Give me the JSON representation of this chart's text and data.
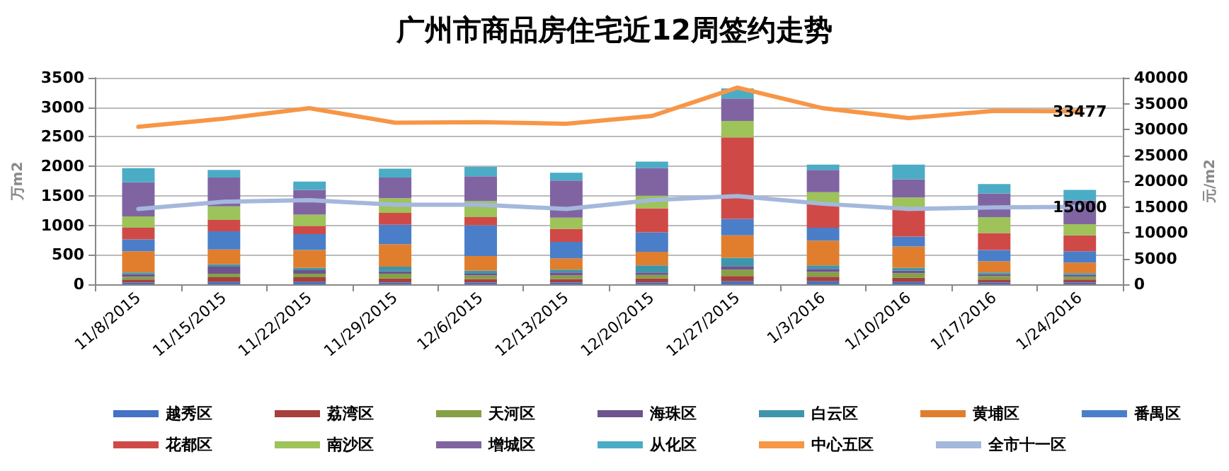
{
  "chart_data": {
    "type": "bar",
    "stacked": true,
    "title": "广州市商品房住宅近12周签约走势",
    "ylabel": "万m2",
    "y2label": "元/m2",
    "categories": [
      "11/8/2015",
      "11/15/2015",
      "11/22/2015",
      "11/29/2015",
      "12/6/2015",
      "12/13/2015",
      "12/20/2015",
      "12/27/2015",
      "1/3/2016",
      "1/10/2016",
      "1/17/2016",
      "1/24/2016"
    ],
    "ylim": [
      0,
      3500
    ],
    "yticks": [
      0,
      500,
      1000,
      1500,
      2000,
      2500,
      3000,
      3500
    ],
    "y2lim": [
      0,
      40000
    ],
    "y2ticks": [
      0,
      5000,
      10000,
      15000,
      20000,
      25000,
      30000,
      35000,
      40000
    ],
    "grid": "y",
    "legend": "bottom",
    "marker": "none",
    "line_style": "solid",
    "series": [
      {
        "name": "越秀区",
        "color": "#4472c4",
        "values": [
          30,
          40,
          40,
          30,
          30,
          30,
          30,
          50,
          50,
          40,
          30,
          30
        ]
      },
      {
        "name": "荔湾区",
        "color": "#a5403d",
        "values": [
          50,
          80,
          80,
          70,
          60,
          60,
          70,
          90,
          80,
          70,
          50,
          50
        ]
      },
      {
        "name": "天河区",
        "color": "#86a046",
        "values": [
          50,
          60,
          60,
          80,
          60,
          60,
          60,
          110,
          80,
          80,
          60,
          50
        ]
      },
      {
        "name": "海珠区",
        "color": "#6e538f",
        "values": [
          40,
          120,
          60,
          40,
          30,
          50,
          40,
          60,
          50,
          40,
          30,
          30
        ]
      },
      {
        "name": "白云区",
        "color": "#3f96ab",
        "values": [
          30,
          40,
          40,
          80,
          50,
          50,
          120,
          140,
          60,
          50,
          30,
          30
        ]
      },
      {
        "name": "黄埔区",
        "color": "#e07e2e",
        "values": [
          360,
          250,
          300,
          380,
          250,
          190,
          230,
          380,
          420,
          360,
          190,
          180
        ]
      },
      {
        "name": "番禺区",
        "color": "#4a7ec8",
        "values": [
          200,
          310,
          270,
          330,
          520,
          280,
          330,
          280,
          220,
          170,
          190,
          190
        ]
      },
      {
        "name": "花都区",
        "color": "#cf4a47",
        "values": [
          200,
          190,
          140,
          200,
          140,
          220,
          410,
          1380,
          410,
          480,
          290,
          270
        ]
      },
      {
        "name": "南沙区",
        "color": "#9dc35a",
        "values": [
          190,
          230,
          190,
          250,
          270,
          190,
          210,
          280,
          190,
          180,
          270,
          190
        ]
      },
      {
        "name": "增城区",
        "color": "#8064a2",
        "values": [
          580,
          490,
          420,
          350,
          420,
          630,
          470,
          380,
          380,
          310,
          400,
          400
        ]
      },
      {
        "name": "从化区",
        "color": "#4bacc6",
        "values": [
          240,
          130,
          140,
          150,
          160,
          130,
          110,
          170,
          90,
          250,
          160,
          180
        ]
      },
      {
        "name": "中心五区",
        "type": "line",
        "axis": "y2",
        "color": "#f79646",
        "values": [
          30500,
          32100,
          34100,
          31300,
          31400,
          31100,
          32600,
          38100,
          34100,
          32200,
          33600,
          33477
        ],
        "value_labels": [
          null,
          null,
          null,
          null,
          null,
          null,
          null,
          null,
          null,
          null,
          null,
          "33477"
        ]
      },
      {
        "name": "全市十一区",
        "type": "line",
        "axis": "y2",
        "color": "#a4b8dc",
        "values": [
          14600,
          16000,
          16300,
          15400,
          15400,
          14600,
          16300,
          17100,
          15600,
          14600,
          14900,
          15000
        ],
        "value_labels": [
          null,
          null,
          null,
          null,
          null,
          null,
          null,
          null,
          null,
          null,
          null,
          "15000"
        ]
      }
    ]
  }
}
